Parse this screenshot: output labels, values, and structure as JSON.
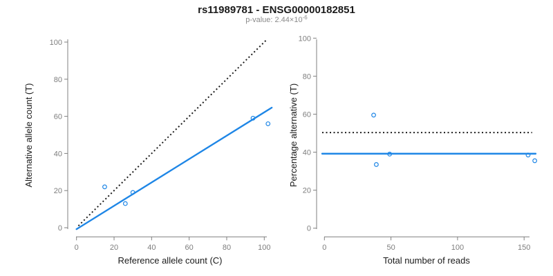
{
  "header": {
    "title": "rs11989781 - ENSG00000182851",
    "pvalue_text": "p-value: 2.44×10",
    "pvalue_exponent": "-6"
  },
  "colors": {
    "accent_blue": "#1E86E6",
    "reference_black": "#1a1a1a",
    "axis_gray": "#7f7f7f",
    "tick_label_gray": "#7d7d7d",
    "subtitle_gray": "#8a8a8a",
    "background": "#ffffff"
  },
  "chart_data": [
    {
      "type": "scatter",
      "panel": "allele-counts",
      "xlabel": "Reference allele count (C)",
      "ylabel": "Alternative allele count (T)",
      "xlim": [
        0,
        100
      ],
      "ylim": [
        0,
        100
      ],
      "xticks": [
        0,
        20,
        40,
        60,
        80,
        100
      ],
      "yticks": [
        0,
        20,
        40,
        60,
        80,
        100
      ],
      "points": [
        [
          15,
          22
        ],
        [
          26,
          13
        ],
        [
          30,
          19
        ],
        [
          94,
          59
        ],
        [
          102,
          56
        ]
      ],
      "fit_line": [
        [
          0,
          -0.8
        ],
        [
          104,
          64.7
        ]
      ],
      "ref_line": [
        [
          1,
          1
        ],
        [
          101.5,
          101.5
        ]
      ],
      "legend": "none",
      "grid": false
    },
    {
      "type": "scatter",
      "panel": "percentage-alternative",
      "xlabel": "Total number of reads",
      "ylabel": "Percentage alternative (T)",
      "xlim": [
        0,
        158
      ],
      "ylim": [
        0,
        100
      ],
      "xticks": [
        0,
        50,
        100,
        150
      ],
      "yticks": [
        0,
        20,
        40,
        60,
        80,
        100
      ],
      "points": [
        [
          37,
          59.5
        ],
        [
          39,
          33.5
        ],
        [
          49,
          39
        ],
        [
          153,
          38.5
        ],
        [
          158,
          35.5
        ]
      ],
      "fit_line": [
        [
          -1.7,
          39.2
        ],
        [
          158.7,
          39.2
        ]
      ],
      "ref_line": [
        [
          -1.7,
          50.3
        ],
        [
          156,
          50.3
        ]
      ],
      "legend": "none",
      "grid": false
    }
  ]
}
